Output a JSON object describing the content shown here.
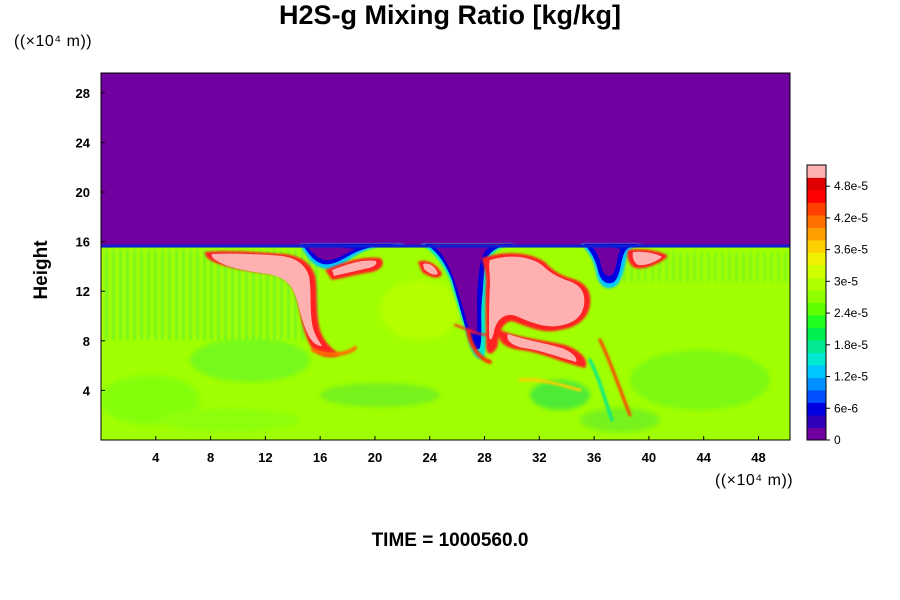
{
  "chart_data": {
    "type": "heatmap",
    "title": "H2S-g Mixing Ratio [kg/kg]",
    "ylabel": "Height",
    "y_unit": "(×10⁴ m)",
    "x_unit": "(×10⁴ m)",
    "xticks": [
      4,
      8,
      12,
      16,
      20,
      24,
      28,
      32,
      36,
      40,
      44,
      48
    ],
    "yticks": [
      4,
      8,
      12,
      16,
      20,
      24,
      28
    ],
    "xlim": [
      0,
      50.3
    ],
    "ylim": [
      0,
      29.6
    ],
    "colorbar": {
      "labels": [
        "0",
        "6e-6",
        "1.2e-5",
        "1.8e-5",
        "2.4e-5",
        "3e-5",
        "3.6e-5",
        "4.2e-5",
        "4.8e-5"
      ],
      "values": [
        0,
        6e-06,
        1.2e-05,
        1.8e-05,
        2.4e-05,
        3e-05,
        3.6e-05,
        4.2e-05,
        4.8e-05
      ],
      "max": 5.2e-05,
      "colors": [
        "#7000a0",
        "#3000b8",
        "#0000e0",
        "#0050ff",
        "#0090ff",
        "#00c8ff",
        "#00e8d0",
        "#00e890",
        "#00f050",
        "#20ff20",
        "#60ff00",
        "#90ff00",
        "#b0ff00",
        "#d0ff00",
        "#f0f000",
        "#ffd000",
        "#ffa000",
        "#ff7000",
        "#ff4000",
        "#ff0000",
        "#e00000",
        "#ffb0b0"
      ]
    },
    "domain_top_level": 15.6,
    "fill_value_upper": 0,
    "fill_value_lower": 3.2e-05
  },
  "footer": {
    "time_label": "TIME = 1000560.0"
  }
}
